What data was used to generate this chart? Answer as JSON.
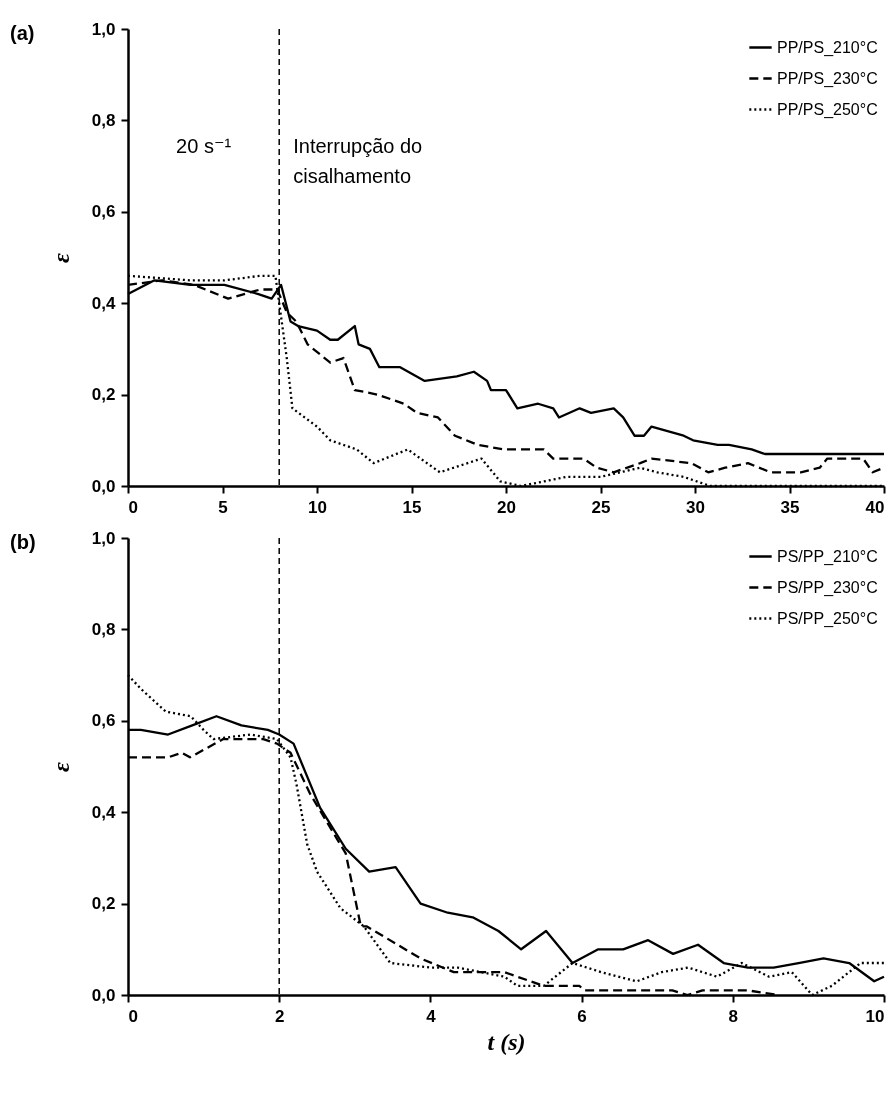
{
  "chart_data": [
    {
      "type": "line",
      "title": "(a)",
      "ylabel": "ε",
      "xlim": [
        0,
        40
      ],
      "xticks": [
        0,
        5,
        10,
        15,
        20,
        25,
        30,
        35,
        40
      ],
      "ylim": [
        0,
        1
      ],
      "yticks": [
        {
          "value": 0,
          "label": "0,0"
        },
        {
          "value": 0.2,
          "label": "0,2"
        },
        {
          "value": 0.4,
          "label": "0,4"
        },
        {
          "value": 0.6,
          "label": "0,6"
        },
        {
          "value": 0.8,
          "label": "0,8"
        },
        {
          "value": 1,
          "label": "1,0"
        }
      ],
      "grid": false,
      "legend": "top right",
      "series": [
        {
          "name": "PP/PS_210°C",
          "color": "#000000",
          "line_style": "solid",
          "x": [
            0,
            1.4,
            3.3,
            5.1,
            6.9,
            7.6,
            8.1,
            8.6,
            9,
            10,
            10.7,
            11.1,
            12,
            12.2,
            12.8,
            13.3,
            14.4,
            15.7,
            17.4,
            18.3,
            19,
            19.2,
            20,
            20.6,
            21.7,
            22.5,
            22.8,
            23.9,
            24.5,
            25.7,
            26.2,
            26.8,
            27.3,
            27.7,
            29.4,
            29.9,
            31.2,
            31.8,
            33,
            33.7,
            36.5,
            37.4,
            40
          ],
          "values": [
            0.42,
            0.45,
            0.44,
            0.44,
            0.42,
            0.41,
            0.44,
            0.36,
            0.35,
            0.34,
            0.32,
            0.32,
            0.35,
            0.31,
            0.3,
            0.26,
            0.26,
            0.23,
            0.24,
            0.25,
            0.23,
            0.21,
            0.21,
            0.17,
            0.18,
            0.17,
            0.15,
            0.17,
            0.16,
            0.17,
            0.15,
            0.11,
            0.11,
            0.13,
            0.11,
            0.1,
            0.09,
            0.09,
            0.08,
            0.07,
            0.07,
            0.07,
            0.07
          ]
        },
        {
          "name": "PP/PS_230°C",
          "color": "#000000",
          "line_style": "dashed",
          "x": [
            0,
            1.8,
            3.5,
            5.3,
            7,
            7.9,
            8.4,
            8.9,
            9.5,
            10.7,
            11.4,
            12,
            13.2,
            14.6,
            15.3,
            16.4,
            17.3,
            18.5,
            19.9,
            21.1,
            22,
            22.5,
            24.1,
            24.8,
            25.7,
            27.1,
            27.7,
            29.8,
            30.7,
            31.6,
            32.8,
            34,
            35.6,
            36.6,
            37,
            38.9,
            39.4,
            40
          ],
          "values": [
            0.44,
            0.45,
            0.44,
            0.41,
            0.43,
            0.43,
            0.38,
            0.36,
            0.31,
            0.27,
            0.28,
            0.21,
            0.2,
            0.18,
            0.16,
            0.15,
            0.11,
            0.09,
            0.08,
            0.08,
            0.08,
            0.06,
            0.06,
            0.04,
            0.03,
            0.05,
            0.06,
            0.05,
            0.03,
            0.04,
            0.05,
            0.03,
            0.03,
            0.04,
            0.06,
            0.06,
            0.03,
            0.04
          ]
        },
        {
          "name": "PP/PS_250°C",
          "color": "#000000",
          "line_style": "dotted",
          "x": [
            0,
            3.3,
            5.1,
            7,
            7.8,
            8.1,
            8.4,
            8.7,
            10,
            10.7,
            12.1,
            13,
            14.8,
            16.5,
            18.7,
            19.7,
            20.8,
            23.2,
            25,
            27.1,
            28,
            29.4,
            30.8,
            35,
            40
          ],
          "values": [
            0.46,
            0.45,
            0.45,
            0.46,
            0.46,
            0.37,
            0.28,
            0.17,
            0.13,
            0.1,
            0.08,
            0.05,
            0.08,
            0.03,
            0.06,
            0.01,
            0,
            0.02,
            0.02,
            0.04,
            0.03,
            0.02,
            0,
            0,
            0
          ]
        }
      ],
      "ref_lines": [
        {
          "axis": "x",
          "value": 8,
          "color": "#000000",
          "line_style": "dashed",
          "label": "Interrupção do cisalhamento"
        }
      ],
      "annotations": [
        "20 s⁻¹"
      ]
    },
    {
      "type": "line",
      "title": "(b)",
      "xlabel": "t (s)",
      "ylabel": "ε",
      "xlim": [
        0,
        10
      ],
      "xticks": [
        0,
        2,
        4,
        6,
        8,
        10
      ],
      "ylim": [
        0,
        1
      ],
      "yticks": [
        {
          "value": 0,
          "label": "0,0"
        },
        {
          "value": 0.2,
          "label": "0,2"
        },
        {
          "value": 0.4,
          "label": "0,4"
        },
        {
          "value": 0.6,
          "label": "0,6"
        },
        {
          "value": 0.8,
          "label": "0,8"
        },
        {
          "value": 1,
          "label": "1,0"
        }
      ],
      "grid": false,
      "legend": "top right",
      "series": [
        {
          "name": "PS/PP_210°C",
          "color": "#000000",
          "line_style": "solid",
          "x": [
            0,
            0.17,
            0.53,
            0.85,
            1.17,
            1.5,
            1.85,
            2,
            2.19,
            2.54,
            2.88,
            3.19,
            3.54,
            3.87,
            4.23,
            4.56,
            4.9,
            5.2,
            5.53,
            5.88,
            6.22,
            6.55,
            6.88,
            7.21,
            7.54,
            7.88,
            8.2,
            8.54,
            8.87,
            9.2,
            9.54,
            9.87,
            10
          ],
          "values": [
            0.58,
            0.58,
            0.57,
            0.59,
            0.61,
            0.59,
            0.58,
            0.57,
            0.55,
            0.41,
            0.32,
            0.27,
            0.28,
            0.2,
            0.18,
            0.17,
            0.14,
            0.1,
            0.14,
            0.07,
            0.1,
            0.1,
            0.12,
            0.09,
            0.11,
            0.07,
            0.06,
            0.06,
            0.07,
            0.08,
            0.07,
            0.03,
            0.04
          ]
        },
        {
          "name": "PS/PP_230°C",
          "color": "#000000",
          "line_style": "dashed",
          "x": [
            0,
            0.53,
            0.71,
            0.82,
            1.26,
            1.79,
            1.97,
            2.15,
            2.41,
            2.77,
            2.88,
            3.08,
            3.16,
            3.87,
            4.31,
            4.98,
            5.15,
            5.5,
            5.97,
            6.04,
            7.2,
            7.4,
            7.6,
            8.2,
            8.6
          ],
          "values": [
            0.52,
            0.52,
            0.53,
            0.52,
            0.56,
            0.56,
            0.55,
            0.53,
            0.44,
            0.34,
            0.31,
            0.15,
            0.15,
            0.08,
            0.05,
            0.05,
            0.04,
            0.02,
            0.02,
            0.01,
            0.01,
            0,
            0.01,
            0.01,
            0
          ]
        },
        {
          "name": "PS/PP_250°C",
          "color": "#000000",
          "line_style": "dotted",
          "x": [
            0,
            0.17,
            0.5,
            0.83,
            1,
            1.13,
            1.62,
            1.97,
            2.15,
            2.23,
            2.37,
            2.5,
            2.81,
            3.12,
            3.47,
            4,
            4.36,
            4.98,
            5.15,
            5.5,
            5.88,
            6.26,
            6.73,
            7.06,
            7.41,
            7.79,
            8.12,
            8.48,
            8.78,
            9.05,
            9.31,
            9.69,
            10
          ],
          "values": [
            0.7,
            0.67,
            0.62,
            0.61,
            0.58,
            0.56,
            0.57,
            0.56,
            0.52,
            0.46,
            0.33,
            0.27,
            0.19,
            0.15,
            0.07,
            0.06,
            0.06,
            0.04,
            0.02,
            0.02,
            0.07,
            0.05,
            0.03,
            0.05,
            0.06,
            0.04,
            0.07,
            0.04,
            0.05,
            0,
            0.02,
            0.07,
            0.07
          ]
        }
      ],
      "ref_lines": [
        {
          "axis": "x",
          "value": 2,
          "color": "#000000",
          "line_style": "dashed"
        }
      ]
    }
  ]
}
